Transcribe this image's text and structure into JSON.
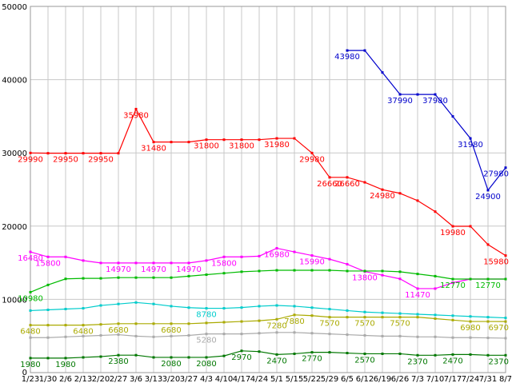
{
  "colors": {
    "background": "#ffffff",
    "grid": "#c8c8c8",
    "frame": "#999999",
    "axis_text": "#000000"
  },
  "chart_data": {
    "type": "line",
    "title": "",
    "xlabel": "",
    "ylabel": "",
    "ylim": [
      0,
      50000
    ],
    "y_ticks": [
      0,
      10000,
      20000,
      30000,
      40000,
      50000
    ],
    "grid": true,
    "legend_position": "none",
    "x_tick_labels": [
      "1/23",
      "1/30",
      "2/6",
      "2/13",
      "2/20",
      "2/27",
      "3/6",
      "3/13",
      "3/20",
      "3/27",
      "4/3",
      "4/10",
      "4/17",
      "4/24",
      "5/1",
      "5/15",
      "5/22",
      "5/29",
      "6/5",
      "6/12",
      "6/19",
      "6/26",
      "7/3",
      "7/10",
      "7/17",
      "7/24",
      "7/31",
      "8/7"
    ],
    "series": [
      {
        "name": "series-red",
        "color": "#ff0000",
        "values": [
          29990,
          29950,
          29950,
          29950,
          29950,
          29950,
          35980,
          31480,
          31480,
          31480,
          31800,
          31800,
          31800,
          31800,
          31980,
          31980,
          29980,
          26660,
          26660,
          25980,
          24980,
          24480,
          23480,
          21980,
          19980,
          19980,
          17480,
          15980
        ],
        "point_labels": [
          {
            "i": 0,
            "t": "29990"
          },
          {
            "i": 2,
            "t": "29950"
          },
          {
            "i": 4,
            "t": "29950"
          },
          {
            "i": 6,
            "t": "35980"
          },
          {
            "i": 7,
            "t": "31480"
          },
          {
            "i": 10,
            "t": "31800"
          },
          {
            "i": 12,
            "t": "31800"
          },
          {
            "i": 14,
            "t": "31980"
          },
          {
            "i": 16,
            "t": "29980"
          },
          {
            "i": 17,
            "t": "26660"
          },
          {
            "i": 18,
            "t": "26660"
          },
          {
            "i": 20,
            "t": "24980"
          },
          {
            "i": 24,
            "t": "19980"
          },
          {
            "i": 27,
            "t": "15980"
          }
        ]
      },
      {
        "name": "series-blue",
        "color": "#0000cc",
        "values": [
          null,
          null,
          null,
          null,
          null,
          null,
          null,
          null,
          null,
          null,
          null,
          null,
          null,
          null,
          null,
          null,
          null,
          null,
          43980,
          43980,
          40980,
          37990,
          37980,
          37980,
          34980,
          31980,
          24900,
          27980
        ],
        "point_labels": [
          {
            "i": 18,
            "t": "43980"
          },
          {
            "i": 21,
            "t": "37990"
          },
          {
            "i": 23,
            "t": "37980"
          },
          {
            "i": 25,
            "t": "31980"
          },
          {
            "i": 26,
            "t": "24900"
          },
          {
            "i": 27,
            "t": "27980"
          }
        ]
      },
      {
        "name": "series-magenta",
        "color": "#ff00ff",
        "values": [
          16480,
          15800,
          15800,
          15300,
          14970,
          14970,
          14970,
          14970,
          14970,
          14970,
          15300,
          15800,
          15800,
          15900,
          16980,
          16480,
          15990,
          15490,
          14800,
          13800,
          13300,
          12800,
          11470,
          11470,
          12270,
          12770,
          12770,
          12770
        ],
        "point_labels": [
          {
            "i": 0,
            "t": "16480"
          },
          {
            "i": 1,
            "t": "15800"
          },
          {
            "i": 5,
            "t": "14970"
          },
          {
            "i": 7,
            "t": "14970"
          },
          {
            "i": 9,
            "t": "14970"
          },
          {
            "i": 11,
            "t": "15800"
          },
          {
            "i": 14,
            "t": "16980"
          },
          {
            "i": 16,
            "t": "15990"
          },
          {
            "i": 19,
            "t": "13800"
          },
          {
            "i": 22,
            "t": "11470"
          }
        ]
      },
      {
        "name": "series-green",
        "color": "#00bb00",
        "values": [
          10980,
          11970,
          12800,
          12870,
          12870,
          12970,
          12970,
          12970,
          12970,
          13170,
          13370,
          13570,
          13770,
          13870,
          13970,
          13970,
          13970,
          13970,
          13870,
          13870,
          13870,
          13770,
          13470,
          13170,
          12770,
          12770,
          12770,
          12770
        ],
        "point_labels": [
          {
            "i": 0,
            "t": "10980"
          },
          {
            "i": 24,
            "t": "12770"
          },
          {
            "i": 26,
            "t": "12770"
          }
        ]
      },
      {
        "name": "series-cyan",
        "color": "#00cccc",
        "values": [
          8470,
          8570,
          8680,
          8780,
          9170,
          9370,
          9570,
          9370,
          9070,
          8870,
          8780,
          8780,
          8880,
          9070,
          9170,
          9070,
          8870,
          8670,
          8470,
          8270,
          8170,
          8070,
          7970,
          7870,
          7770,
          7670,
          7570,
          7470
        ],
        "point_labels": [
          {
            "i": 10,
            "t": "8780"
          }
        ]
      },
      {
        "name": "series-olive",
        "color": "#aaaa00",
        "values": [
          6480,
          6480,
          6480,
          6480,
          6580,
          6680,
          6680,
          6680,
          6680,
          6680,
          6780,
          6880,
          6980,
          7080,
          7280,
          7880,
          7780,
          7570,
          7570,
          7570,
          7570,
          7570,
          7570,
          7370,
          7170,
          6980,
          6980,
          6970
        ],
        "point_labels": [
          {
            "i": 0,
            "t": "6480"
          },
          {
            "i": 3,
            "t": "6480"
          },
          {
            "i": 5,
            "t": "6680"
          },
          {
            "i": 8,
            "t": "6680"
          },
          {
            "i": 14,
            "t": "7280"
          },
          {
            "i": 15,
            "t": "7880"
          },
          {
            "i": 17,
            "t": "7570"
          },
          {
            "i": 19,
            "t": "7570"
          },
          {
            "i": 21,
            "t": "7570"
          },
          {
            "i": 25,
            "t": "6980"
          },
          {
            "i": 27,
            "t": "6970"
          }
        ]
      },
      {
        "name": "series-gray",
        "color": "#aaaaaa",
        "values": [
          4780,
          4780,
          4880,
          4980,
          5080,
          5180,
          4980,
          4880,
          4980,
          5080,
          5280,
          5280,
          5280,
          5380,
          5480,
          5480,
          5380,
          5280,
          5180,
          5080,
          4980,
          4980,
          4880,
          4880,
          4780,
          4780,
          4740,
          4700
        ],
        "point_labels": [
          {
            "i": 10,
            "t": "5280"
          }
        ]
      },
      {
        "name": "series-darkgreen",
        "color": "#007700",
        "values": [
          1980,
          1980,
          1980,
          2080,
          2180,
          2380,
          2380,
          2080,
          2080,
          2080,
          2080,
          2280,
          2970,
          2870,
          2470,
          2570,
          2770,
          2770,
          2670,
          2570,
          2570,
          2570,
          2370,
          2370,
          2470,
          2470,
          2370,
          2370
        ],
        "point_labels": [
          {
            "i": 0,
            "t": "1980"
          },
          {
            "i": 2,
            "t": "1980"
          },
          {
            "i": 5,
            "t": "2380"
          },
          {
            "i": 8,
            "t": "2080"
          },
          {
            "i": 10,
            "t": "2080"
          },
          {
            "i": 12,
            "t": "2970"
          },
          {
            "i": 14,
            "t": "2470"
          },
          {
            "i": 16,
            "t": "2770"
          },
          {
            "i": 19,
            "t": "2570"
          },
          {
            "i": 22,
            "t": "2370"
          },
          {
            "i": 24,
            "t": "2470"
          },
          {
            "i": 27,
            "t": "2370"
          }
        ]
      }
    ]
  }
}
